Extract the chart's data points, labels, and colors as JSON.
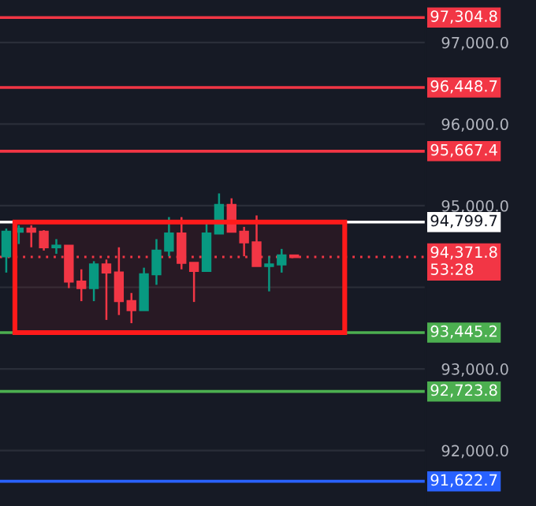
{
  "chart_data": {
    "type": "candlestick",
    "categories": [
      null,
      null,
      null,
      null,
      null,
      null,
      null,
      null,
      null,
      null,
      null,
      null,
      null,
      null,
      null,
      null,
      null,
      null,
      null,
      null,
      null,
      null,
      null,
      null,
      null,
      null,
      null,
      null,
      null,
      null,
      null,
      null,
      null,
      null
    ],
    "ohlc": [
      [
        94380,
        94720,
        94180,
        94680
      ],
      [
        94680,
        94760,
        94530,
        94720
      ],
      [
        94720,
        94760,
        94490,
        94680
      ],
      [
        94680,
        94700,
        94450,
        94490
      ],
      [
        94490,
        94590,
        94410,
        94510
      ],
      [
        94510,
        94510,
        93990,
        94070
      ],
      [
        94070,
        94220,
        93830,
        93990
      ],
      [
        93990,
        94320,
        93830,
        94280
      ],
      [
        94280,
        94340,
        93600,
        94180
      ],
      [
        94180,
        94490,
        93660,
        93830
      ],
      [
        93830,
        93930,
        93560,
        93720
      ],
      [
        93720,
        94240,
        93720,
        94160
      ],
      [
        94160,
        94590,
        94030,
        94450
      ],
      [
        94450,
        94860,
        94380,
        94660
      ],
      [
        94660,
        94860,
        94220,
        94300
      ],
      [
        94300,
        94300,
        93820,
        94200
      ],
      [
        94200,
        94780,
        94200,
        94660
      ],
      [
        94660,
        95150,
        94660,
        95010
      ],
      [
        95010,
        95090,
        94680,
        94680
      ],
      [
        94680,
        94740,
        94380,
        94550
      ],
      [
        94550,
        94880,
        94260,
        94260
      ],
      [
        94260,
        94380,
        93950,
        94280
      ],
      [
        94280,
        94470,
        94180,
        94390
      ],
      [
        94390,
        94390,
        94370,
        94370
      ],
      null,
      null,
      null,
      null,
      null,
      null,
      null,
      null,
      null,
      null
    ],
    "colors": [
      "#089981",
      "#089981",
      "#f23645",
      "#f23645",
      "#089981",
      "#f23645",
      "#f23645",
      "#089981",
      "#f23645",
      "#f23645",
      "#f23645",
      "#089981",
      "#089981",
      "#089981",
      "#f23645",
      "#f23645",
      "#089981",
      "#089981",
      "#f23645",
      "#f23645",
      "#f23645",
      "#089981",
      "#089981",
      "#f23645",
      null,
      null,
      null,
      null,
      null,
      null,
      null,
      null,
      null,
      null
    ],
    "ylim": [
      91320,
      97520
    ],
    "yticks": [
      {
        "value": 92000,
        "label": "92,000.0"
      },
      {
        "value": 93000,
        "label": "93,000.0"
      },
      {
        "value": 94000,
        "label": null
      },
      {
        "value": 95000,
        "label": "95,000.0"
      },
      {
        "value": 96000,
        "label": "96,000.0"
      },
      {
        "value": 97000,
        "label": "97,000.0"
      }
    ],
    "ref_lines": [
      {
        "axis": "y",
        "value": 97304.8,
        "label": "97,304.8",
        "color": "#f23645",
        "line_style": "solid"
      },
      {
        "axis": "y",
        "value": 96448.7,
        "label": "96,448.7",
        "color": "#f23645",
        "line_style": "solid"
      },
      {
        "axis": "y",
        "value": 95667.4,
        "label": "95,667.4",
        "color": "#f23645",
        "line_style": "solid"
      },
      {
        "axis": "y",
        "value": 94799.7,
        "label": "94,799.7",
        "color": "#ffffff",
        "line_style": "solid"
      },
      {
        "axis": "y",
        "value": 94371.8,
        "label": "94,371.8\n53:28",
        "color": "#f23645",
        "line_style": "dotted"
      },
      {
        "axis": "y",
        "value": 93445.2,
        "label": "93,445.2",
        "color": "#4caf50",
        "line_style": "solid"
      },
      {
        "axis": "y",
        "value": 92723.8,
        "label": "92,723.8",
        "color": "#4caf50",
        "line_style": "solid"
      },
      {
        "axis": "y",
        "value": 91622.7,
        "label": "91,622.7",
        "color": "#2962ff",
        "line_style": "solid"
      }
    ],
    "bands": [
      {
        "axis": "y",
        "from": 93445.2,
        "to": 94799.7,
        "color": "#ff1a1a"
      }
    ],
    "grid": "y",
    "tick_labels": "y"
  }
}
